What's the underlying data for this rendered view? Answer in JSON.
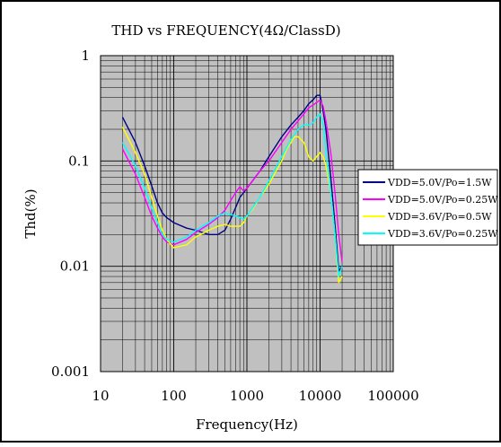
{
  "chart_data": {
    "type": "line",
    "title": "THD vs FREQUENCY(4Ω/ClassD)",
    "xlabel": "Frequency(Hz)",
    "ylabel": "Thd(%)",
    "xscale": "log",
    "yscale": "log",
    "xlim": [
      10,
      100000
    ],
    "ylim": [
      0.001,
      1
    ],
    "xticks": [
      "10",
      "100",
      "1000",
      "10000",
      "100000"
    ],
    "yticks": [
      "1",
      "0.1",
      "0.01",
      "0.001"
    ],
    "grid": true,
    "plot_background": "#c0c0c0",
    "legend_position": "right",
    "series": [
      {
        "name": "VDD=5.0V/Po=1.5W",
        "color": "#000080",
        "points": [
          [
            20,
            0.26
          ],
          [
            30,
            0.15
          ],
          [
            40,
            0.09
          ],
          [
            50,
            0.058
          ],
          [
            60,
            0.04
          ],
          [
            70,
            0.032
          ],
          [
            80,
            0.029
          ],
          [
            100,
            0.026
          ],
          [
            150,
            0.023
          ],
          [
            200,
            0.022
          ],
          [
            300,
            0.02
          ],
          [
            400,
            0.02
          ],
          [
            500,
            0.022
          ],
          [
            600,
            0.028
          ],
          [
            700,
            0.036
          ],
          [
            800,
            0.045
          ],
          [
            1000,
            0.055
          ],
          [
            1500,
            0.08
          ],
          [
            2000,
            0.11
          ],
          [
            3000,
            0.17
          ],
          [
            4000,
            0.22
          ],
          [
            5000,
            0.26
          ],
          [
            6000,
            0.3
          ],
          [
            7000,
            0.35
          ],
          [
            8000,
            0.38
          ],
          [
            9000,
            0.42
          ],
          [
            10000,
            0.42
          ],
          [
            11000,
            0.3
          ],
          [
            12000,
            0.2
          ],
          [
            14000,
            0.07
          ],
          [
            16000,
            0.025
          ],
          [
            18000,
            0.009
          ],
          [
            20000,
            0.01
          ]
        ]
      },
      {
        "name": "VDD=5.0V/Po=0.25W",
        "color": "#ff00ff",
        "points": [
          [
            20,
            0.13
          ],
          [
            30,
            0.075
          ],
          [
            40,
            0.045
          ],
          [
            50,
            0.03
          ],
          [
            60,
            0.023
          ],
          [
            70,
            0.019
          ],
          [
            80,
            0.017
          ],
          [
            100,
            0.016
          ],
          [
            150,
            0.018
          ],
          [
            200,
            0.021
          ],
          [
            300,
            0.025
          ],
          [
            400,
            0.029
          ],
          [
            500,
            0.034
          ],
          [
            600,
            0.042
          ],
          [
            700,
            0.05
          ],
          [
            800,
            0.057
          ],
          [
            900,
            0.052
          ],
          [
            1000,
            0.055
          ],
          [
            1500,
            0.08
          ],
          [
            2000,
            0.1
          ],
          [
            3000,
            0.15
          ],
          [
            4000,
            0.2
          ],
          [
            5000,
            0.24
          ],
          [
            6000,
            0.28
          ],
          [
            7000,
            0.32
          ],
          [
            8000,
            0.34
          ],
          [
            9000,
            0.36
          ],
          [
            10000,
            0.38
          ],
          [
            11000,
            0.33
          ],
          [
            12000,
            0.24
          ],
          [
            14000,
            0.12
          ],
          [
            16000,
            0.05
          ],
          [
            18000,
            0.02
          ],
          [
            20000,
            0.011
          ]
        ]
      },
      {
        "name": "VDD=3.6V/Po=0.5W",
        "color": "#ffff00",
        "points": [
          [
            20,
            0.21
          ],
          [
            30,
            0.12
          ],
          [
            40,
            0.075
          ],
          [
            50,
            0.045
          ],
          [
            60,
            0.03
          ],
          [
            70,
            0.022
          ],
          [
            80,
            0.018
          ],
          [
            100,
            0.015
          ],
          [
            150,
            0.016
          ],
          [
            200,
            0.019
          ],
          [
            300,
            0.022
          ],
          [
            400,
            0.024
          ],
          [
            500,
            0.025
          ],
          [
            600,
            0.024
          ],
          [
            700,
            0.024
          ],
          [
            800,
            0.024
          ],
          [
            900,
            0.026
          ],
          [
            1000,
            0.03
          ],
          [
            1200,
            0.035
          ],
          [
            1500,
            0.045
          ],
          [
            2000,
            0.06
          ],
          [
            2500,
            0.08
          ],
          [
            3000,
            0.1
          ],
          [
            3500,
            0.13
          ],
          [
            4000,
            0.15
          ],
          [
            4500,
            0.17
          ],
          [
            5000,
            0.17
          ],
          [
            6000,
            0.15
          ],
          [
            7000,
            0.11
          ],
          [
            8000,
            0.1
          ],
          [
            9000,
            0.11
          ],
          [
            10000,
            0.12
          ],
          [
            11000,
            0.11
          ],
          [
            12000,
            0.09
          ],
          [
            14000,
            0.05
          ],
          [
            16000,
            0.02
          ],
          [
            18000,
            0.007
          ],
          [
            20000,
            0.008
          ]
        ]
      },
      {
        "name": "VDD=3.6V/Po=0.25W",
        "color": "#00ffff",
        "points": [
          [
            20,
            0.15
          ],
          [
            30,
            0.09
          ],
          [
            40,
            0.055
          ],
          [
            50,
            0.036
          ],
          [
            60,
            0.026
          ],
          [
            70,
            0.02
          ],
          [
            80,
            0.018
          ],
          [
            100,
            0.017
          ],
          [
            150,
            0.019
          ],
          [
            200,
            0.022
          ],
          [
            300,
            0.026
          ],
          [
            400,
            0.03
          ],
          [
            500,
            0.032
          ],
          [
            600,
            0.031
          ],
          [
            700,
            0.03
          ],
          [
            800,
            0.029
          ],
          [
            900,
            0.028
          ],
          [
            1000,
            0.03
          ],
          [
            1500,
            0.045
          ],
          [
            2000,
            0.065
          ],
          [
            3000,
            0.11
          ],
          [
            4000,
            0.16
          ],
          [
            5000,
            0.2
          ],
          [
            6000,
            0.22
          ],
          [
            7000,
            0.22
          ],
          [
            8000,
            0.23
          ],
          [
            9000,
            0.26
          ],
          [
            10000,
            0.28
          ],
          [
            11000,
            0.22
          ],
          [
            12000,
            0.12
          ],
          [
            14000,
            0.05
          ],
          [
            16000,
            0.02
          ],
          [
            18000,
            0.008
          ],
          [
            20000,
            0.01
          ]
        ]
      }
    ]
  }
}
